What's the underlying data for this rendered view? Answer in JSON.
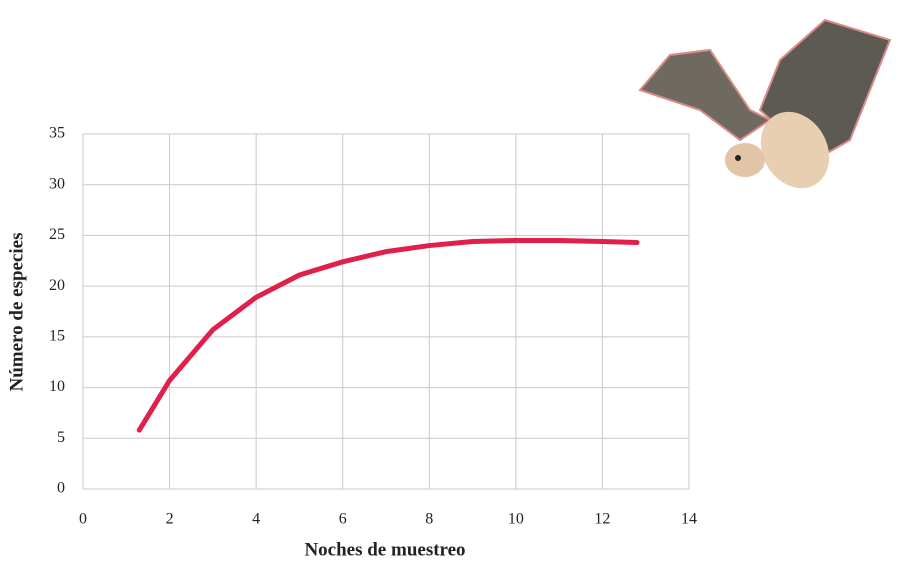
{
  "chart_data": {
    "type": "line",
    "x_label": "Noches de muestreo",
    "y_label": "Número de especies",
    "x": [
      1.3,
      2,
      3,
      4,
      5,
      6,
      7,
      8,
      9,
      10,
      11,
      12,
      12.8
    ],
    "series": [
      {
        "color": "#e0204a",
        "values": [
          5.8,
          10.7,
          15.7,
          18.9,
          21.1,
          22.4,
          23.4,
          24.0,
          24.4,
          24.5,
          24.5,
          24.4,
          24.3
        ]
      }
    ],
    "xlim": [
      0,
      14
    ],
    "xticks": [
      0,
      2,
      4,
      6,
      8,
      10,
      12,
      14
    ],
    "ylim": [
      0,
      35
    ],
    "yticks": [
      0,
      5,
      10,
      15,
      20,
      25,
      30,
      35
    ],
    "grid": true
  }
}
